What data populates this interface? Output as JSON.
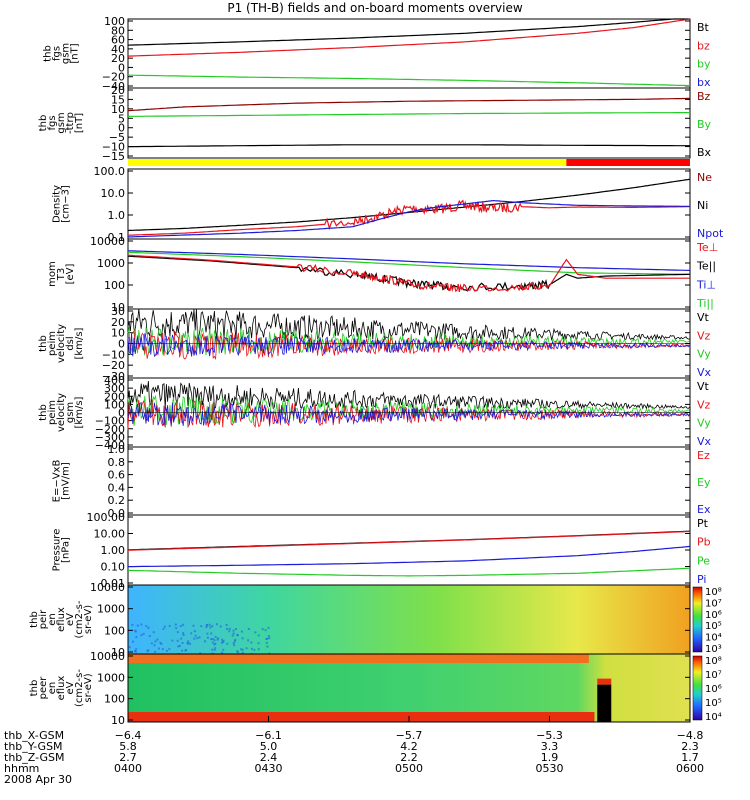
{
  "title": "P1 (TH-B) fields and on-board moments overview",
  "colors": {
    "black": "#000000",
    "red": "#e8141c",
    "green": "#22cc22",
    "blue": "#1a1adc",
    "yellow": "#ffff00",
    "darkred": "#8b0000"
  },
  "chart_data": [
    {
      "type": "line",
      "id": "fgs-gsm",
      "ylabel": [
        "thb",
        "fgs",
        "gsm",
        "[nT]"
      ],
      "yticks": [
        "100",
        "80",
        "60",
        "40",
        "20",
        "0",
        "−20",
        "−40"
      ],
      "ylim": [
        -45,
        100
      ],
      "legend": [
        {
          "label": "Bt",
          "color": "#000000"
        },
        {
          "label": "bz",
          "color": "#e8141c"
        },
        {
          "label": "by",
          "color": "#22cc22"
        },
        {
          "label": "bx",
          "color": "#1a1adc"
        }
      ],
      "series": [
        {
          "name": "Bt",
          "color": "#000000",
          "x": [
            0,
            0.2,
            0.4,
            0.6,
            0.8,
            0.9,
            1
          ],
          "y": [
            45,
            52,
            60,
            70,
            84,
            93,
            103
          ]
        },
        {
          "name": "bz",
          "color": "#e8141c",
          "x": [
            0,
            0.2,
            0.4,
            0.6,
            0.8,
            0.9,
            1
          ],
          "y": [
            22,
            30,
            40,
            52,
            70,
            82,
            100
          ]
        },
        {
          "name": "by",
          "color": "#22cc22",
          "x": [
            0,
            0.2,
            0.4,
            0.6,
            0.8,
            1
          ],
          "y": [
            -18,
            -22,
            -25,
            -29,
            -34,
            -40
          ]
        }
      ]
    },
    {
      "type": "line",
      "id": "fgs-gsm-detail",
      "ylabel": [
        "thb",
        "fgs",
        "gsm",
        "-ttrp",
        "[nT]"
      ],
      "yticks": [
        "20",
        "15",
        "10",
        "5",
        "0",
        "−5",
        "−10",
        "−15"
      ],
      "ylim": [
        -17,
        20
      ],
      "legend": [
        {
          "label": "Bz",
          "color": "#8b0000"
        },
        {
          "label": "By",
          "color": "#22cc22"
        },
        {
          "label": "Bx",
          "color": "#000000"
        }
      ],
      "series": [
        {
          "name": "Bz",
          "color": "#8b0000",
          "x": [
            0,
            0.1,
            0.3,
            0.5,
            0.7,
            0.9,
            1
          ],
          "y": [
            8,
            10,
            12,
            13,
            13.5,
            14,
            14.5
          ]
        },
        {
          "name": "By",
          "color": "#22cc22",
          "x": [
            0,
            0.2,
            0.4,
            0.6,
            0.8,
            1
          ],
          "y": [
            5,
            5.5,
            6,
            6.5,
            6.8,
            7
          ]
        },
        {
          "name": "Bx",
          "color": "#000000",
          "x": [
            0,
            0.2,
            0.4,
            0.6,
            0.8,
            1
          ],
          "y": [
            -11,
            -10.5,
            -10,
            -10,
            -10.3,
            -10.5
          ]
        }
      ]
    },
    {
      "type": "line",
      "id": "density",
      "log": true,
      "ylabel": [
        "Density",
        "[cm−3]"
      ],
      "yticks": [
        "100.0",
        "10.0",
        "1.0",
        "0.1"
      ],
      "ylim": [
        0.08,
        150
      ],
      "legend": [
        {
          "label": "Ne",
          "color": "#8b0000"
        },
        {
          "label": "Ni",
          "color": "#000000"
        },
        {
          "label": "Npot",
          "color": "#1a1adc"
        }
      ],
      "series": [
        {
          "name": "Ni",
          "color": "#000000",
          "x": [
            0,
            0.1,
            0.2,
            0.3,
            0.4,
            0.5,
            0.6,
            0.7,
            0.8,
            0.9,
            1
          ],
          "y": [
            0.2,
            0.25,
            0.35,
            0.5,
            0.8,
            1.4,
            2.5,
            4.5,
            9,
            20,
            50
          ]
        },
        {
          "name": "Ne",
          "color": "#e8141c",
          "x": [
            0,
            0.1,
            0.2,
            0.3,
            0.4,
            0.45,
            0.5,
            0.55,
            0.6,
            0.65,
            0.7,
            0.75,
            0.8,
            0.9,
            1
          ],
          "y": [
            0.12,
            0.15,
            0.22,
            0.3,
            0.5,
            1.0,
            2.2,
            2.0,
            3.0,
            2.2,
            2.6,
            2.3,
            2.5,
            2.4,
            2.6
          ]
        },
        {
          "name": "Npot",
          "color": "#1a1adc",
          "x": [
            0,
            0.2,
            0.3,
            0.4,
            0.45,
            0.5,
            0.55,
            0.6,
            0.65,
            0.7,
            0.8,
            0.9,
            1
          ],
          "y": [
            0.1,
            0.15,
            0.2,
            0.3,
            0.7,
            1.5,
            2.5,
            3.5,
            5,
            4,
            3,
            2.8,
            2.7
          ]
        }
      ]
    },
    {
      "type": "line",
      "id": "temperature",
      "log": true,
      "ylabel": [
        "mom",
        "T3",
        "[eV]"
      ],
      "yticks": [
        "10000",
        "1000",
        "100",
        "10"
      ],
      "ylim": [
        8,
        12000
      ],
      "legend": [
        {
          "label": "Te⊥",
          "color": "#e8141c"
        },
        {
          "label": "Te||",
          "color": "#000000"
        },
        {
          "label": "Ti⊥",
          "color": "#1a1adc"
        },
        {
          "label": "Ti||",
          "color": "#22cc22"
        }
      ],
      "series": [
        {
          "name": "Ti⊥",
          "color": "#1a1adc",
          "x": [
            0,
            0.2,
            0.4,
            0.6,
            0.8,
            1
          ],
          "y": [
            3500,
            2400,
            1500,
            900,
            600,
            450
          ]
        },
        {
          "name": "Ti||",
          "color": "#22cc22",
          "x": [
            0,
            0.2,
            0.4,
            0.6,
            0.8,
            1
          ],
          "y": [
            3000,
            1900,
            1100,
            600,
            350,
            300
          ]
        },
        {
          "name": "Te||",
          "color": "#000000",
          "x": [
            0,
            0.15,
            0.3,
            0.4,
            0.45,
            0.5,
            0.55,
            0.6,
            0.7,
            0.75,
            0.78,
            0.8,
            0.85,
            1
          ],
          "y": [
            2000,
            1200,
            600,
            300,
            200,
            120,
            90,
            80,
            90,
            100,
            300,
            200,
            250,
            300
          ]
        },
        {
          "name": "Te⊥",
          "color": "#e8141c",
          "x": [
            0,
            0.15,
            0.3,
            0.4,
            0.45,
            0.5,
            0.55,
            0.6,
            0.7,
            0.75,
            0.78,
            0.8,
            0.85,
            1
          ],
          "y": [
            2200,
            1300,
            650,
            320,
            210,
            110,
            80,
            70,
            80,
            90,
            1400,
            300,
            200,
            200
          ]
        }
      ]
    },
    {
      "type": "line",
      "id": "peim-velocity-dsl",
      "ylabel": [
        "thb",
        "peim",
        "velocity",
        "dsl",
        "[km/s]"
      ],
      "yticks": [
        "30",
        "20",
        "10",
        "0",
        "−10",
        "−20",
        "−30"
      ],
      "ylim": [
        -30,
        30
      ],
      "legend": [
        {
          "label": "Vt",
          "color": "#000000"
        },
        {
          "label": "Vz",
          "color": "#e8141c"
        },
        {
          "label": "Vy",
          "color": "#22cc22"
        },
        {
          "label": "Vx",
          "color": "#1a1adc"
        }
      ]
    },
    {
      "type": "line",
      "id": "peim-velocity-gsm",
      "ylabel": [
        "thb",
        "peim",
        "velocity",
        "gsm",
        "[km/s]"
      ],
      "yticks": [
        "400",
        "300",
        "200",
        "100",
        "0",
        "−100",
        "−200",
        "−300",
        "−400"
      ],
      "ylim": [
        -400,
        400
      ],
      "legend": [
        {
          "label": "Vt",
          "color": "#000000"
        },
        {
          "label": "Vz",
          "color": "#e8141c"
        },
        {
          "label": "Vy",
          "color": "#22cc22"
        },
        {
          "label": "Vx",
          "color": "#1a1adc"
        }
      ]
    },
    {
      "type": "line",
      "id": "efield",
      "ylabel": [
        "E=−VxB",
        "[mV/m]"
      ],
      "yticks": [
        "1.0",
        "0.8",
        "0.6",
        "0.4",
        "0.2",
        "0.0"
      ],
      "ylim": [
        0,
        1
      ],
      "legend": [
        {
          "label": "Ez",
          "color": "#e8141c"
        },
        {
          "label": "Ey",
          "color": "#22cc22"
        },
        {
          "label": "Ex",
          "color": "#1a1adc"
        }
      ]
    },
    {
      "type": "line",
      "id": "pressure",
      "log": true,
      "ylabel": [
        "Pressure",
        "[nPa]"
      ],
      "yticks": [
        "100.00",
        "10.00",
        "1.00",
        "0.10",
        "0.01"
      ],
      "ylim": [
        0.008,
        120
      ],
      "legend": [
        {
          "label": "Pt",
          "color": "#000000"
        },
        {
          "label": "Pb",
          "color": "#e8141c"
        },
        {
          "label": "Pe",
          "color": "#22cc22"
        },
        {
          "label": "Pi",
          "color": "#1a1adc"
        }
      ],
      "series": [
        {
          "name": "Pt",
          "color": "#000000",
          "x": [
            0,
            0.2,
            0.4,
            0.6,
            0.8,
            1
          ],
          "y": [
            1.0,
            1.6,
            2.5,
            4,
            7,
            13
          ]
        },
        {
          "name": "Pb",
          "color": "#e8141c",
          "x": [
            0,
            0.2,
            0.4,
            0.6,
            0.8,
            1
          ],
          "y": [
            0.95,
            1.5,
            2.4,
            3.9,
            6.8,
            12.5
          ]
        },
        {
          "name": "Pi",
          "color": "#1a1adc",
          "x": [
            0,
            0.2,
            0.4,
            0.6,
            0.8,
            0.9,
            1
          ],
          "y": [
            0.1,
            0.12,
            0.15,
            0.22,
            0.45,
            0.8,
            1.6
          ]
        },
        {
          "name": "Pe",
          "color": "#22cc22",
          "x": [
            0,
            0.2,
            0.4,
            0.5,
            0.6,
            0.8,
            1
          ],
          "y": [
            0.06,
            0.04,
            0.03,
            0.028,
            0.03,
            0.04,
            0.08
          ]
        }
      ]
    },
    {
      "type": "heatmap",
      "id": "peir-en-eflux",
      "ylabel": [
        "thb",
        "peir",
        "en",
        "eflux",
        "eV",
        "(cm2-s-",
        "sr-eV)"
      ],
      "yticks": [
        "10000",
        "1000",
        "100",
        "10"
      ],
      "colorbar_ticks": [
        "10⁸",
        "10⁷",
        "10⁶",
        "10⁵",
        "10⁴",
        "10³"
      ]
    },
    {
      "type": "heatmap",
      "id": "peer-en-eflux",
      "ylabel": [
        "thb",
        "peer",
        "en",
        "eflux",
        "eV",
        "(cm2-s-",
        "sr-eV)"
      ],
      "yticks": [
        "10000",
        "1000",
        "100",
        "10"
      ],
      "colorbar_ticks": [
        "10⁸",
        "10⁷",
        "10⁶",
        "10⁵",
        "10⁴"
      ]
    }
  ],
  "ephemeris": {
    "rows": [
      {
        "label": "thb_X-GSM",
        "values": [
          "−6.4",
          "−6.1",
          "−5.7",
          "−5.3",
          "−4.8"
        ]
      },
      {
        "label": "thb_Y-GSM",
        "values": [
          "5.8",
          "5.0",
          "4.2",
          "3.3",
          "2.3"
        ]
      },
      {
        "label": "thb_Z-GSM",
        "values": [
          "2.7",
          "2.4",
          "2.2",
          "1.9",
          "1.7"
        ]
      },
      {
        "label": "hhmm",
        "values": [
          "0400",
          "0430",
          "0500",
          "0530",
          "0600"
        ]
      }
    ],
    "date": "2008 Apr 30"
  },
  "mode_bar": {
    "yellow_fraction": 0.78,
    "colors": [
      "#ffff00",
      "#ff0000"
    ]
  }
}
